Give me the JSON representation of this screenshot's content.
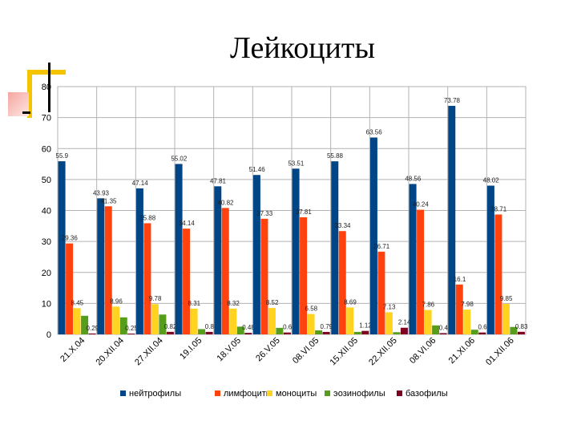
{
  "title": "Лейкоциты",
  "chart_data": {
    "type": "bar",
    "categories": [
      "21.X.04",
      "20.XII.04",
      "27.XII.04",
      "19.I.05",
      "18.V.05",
      "26.V.05",
      "08.VI.05",
      "15.XII.05",
      "22.XII.05",
      "08.VI.06",
      "21.XI.06",
      "01.XII.06"
    ],
    "ylim": [
      0,
      80
    ],
    "yticks": [
      0,
      10,
      20,
      30,
      40,
      50,
      60,
      70,
      80
    ],
    "grid": true,
    "legend_position": "bottom",
    "series": [
      {
        "name": "нейтрофилы",
        "color": "#004586",
        "values": [
          55.9,
          43.93,
          47.14,
          55.02,
          47.81,
          51.46,
          53.51,
          55.88,
          63.56,
          48.56,
          73.78,
          48.02
        ],
        "labels": [
          "55.9",
          "43.93",
          "47.14",
          "55.02",
          "47.81",
          "51.46",
          "53.51",
          "55.88",
          "63.56",
          "48.56",
          "73.78",
          "48.02"
        ]
      },
      {
        "name": "лимфоциты",
        "color": "#ff420e",
        "values": [
          29.36,
          41.35,
          35.88,
          34.14,
          40.82,
          37.33,
          37.81,
          33.34,
          26.71,
          40.24,
          16.1,
          38.71
        ],
        "labels": [
          "29.36",
          "41.35",
          "35.88",
          "34.14",
          "40.82",
          "37.33",
          "37.81",
          "33.34",
          "26.71",
          "40.24",
          "16.1",
          "38.71"
        ]
      },
      {
        "name": "моноциты",
        "color": "#ffd320",
        "values": [
          8.45,
          8.96,
          9.78,
          8.31,
          8.32,
          8.52,
          6.58,
          8.69,
          7.13,
          7.86,
          7.98,
          9.85
        ],
        "labels": [
          "8.45",
          "8.96",
          "9.78",
          "8.31",
          "8.32",
          "8.52",
          "6.58",
          "8.69",
          "7.13",
          "7.86",
          "7.98",
          "9.85"
        ]
      },
      {
        "name": "эозинофилы",
        "color": "#579d1c",
        "values": [
          6,
          5.5,
          6.4,
          1.7,
          2.5,
          2.1,
          1.3,
          0.8,
          0.7,
          2.9,
          1.5,
          2.4
        ],
        "labels": [
          "",
          "",
          "",
          "",
          "",
          "",
          "",
          "",
          "",
          "",
          "",
          ""
        ]
      },
      {
        "name": "базофилы",
        "color": "#7e0021",
        "values": [
          0.29,
          0.25,
          0.82,
          0.8,
          0.48,
          0.6,
          0.79,
          1.12,
          2.14,
          0.4,
          0.6,
          0.83
        ],
        "labels": [
          "0.29",
          "0.25",
          "0.82",
          "0.8",
          "0.48",
          "0.6",
          "0.79",
          "1.12",
          "2.14",
          "0.4",
          "0.6",
          "0.83"
        ]
      }
    ]
  }
}
